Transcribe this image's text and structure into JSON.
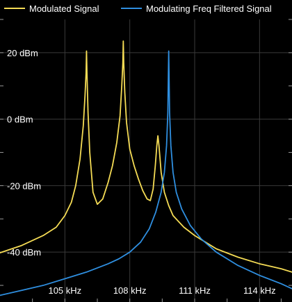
{
  "chart_data": {
    "type": "line",
    "title": "",
    "xlabel": "",
    "ylabel": "",
    "x_unit": "kHz",
    "y_unit": "dBm",
    "xlim": [
      102.0,
      115.5
    ],
    "ylim": [
      -55,
      30
    ],
    "x_ticks": [
      105,
      108,
      111,
      114
    ],
    "x_tick_labels": [
      "105 kHz",
      "108 kHz",
      "111 kHz",
      "114 kHz"
    ],
    "y_ticks": [
      20,
      0,
      -20,
      -40
    ],
    "y_tick_labels": [
      "20 dBm",
      "0 dBm",
      "-20 dBm",
      "-40 dBm"
    ],
    "x_minor_ticks": [
      103.5,
      106.5,
      109.5,
      112.5,
      115.0
    ],
    "y_minor_ticks": [
      30,
      10,
      -10,
      -30,
      -50
    ],
    "grid": true,
    "legend_position": "top",
    "background_color": "#000000",
    "grid_color": "#3a3a3a",
    "text_color": "#ffffff",
    "series": [
      {
        "name": "Modulated Signal",
        "color": "#f5dc55",
        "x": [
          102.0,
          103.0,
          104.0,
          104.6,
          105.0,
          105.3,
          105.5,
          105.7,
          105.85,
          105.93,
          105.98,
          106.0,
          106.02,
          106.07,
          106.15,
          106.3,
          106.5,
          106.75,
          107.0,
          107.2,
          107.4,
          107.55,
          107.63,
          107.68,
          107.7,
          107.72,
          107.77,
          107.85,
          108.0,
          108.2,
          108.4,
          108.6,
          108.8,
          108.95,
          109.08,
          109.18,
          109.25,
          109.3,
          109.35,
          109.45,
          109.6,
          109.8,
          110.0,
          110.5,
          111.0,
          111.5,
          112.0,
          113.0,
          114.0,
          115.0,
          115.5
        ],
        "y": [
          -40.2,
          -38.0,
          -35.0,
          -32.5,
          -29.0,
          -25.0,
          -20.0,
          -12.0,
          -2.0,
          7.0,
          14.0,
          20.5,
          14.0,
          2.0,
          -10.0,
          -22.0,
          -25.6,
          -24.0,
          -19.0,
          -14.0,
          -7.0,
          1.0,
          10.0,
          17.0,
          23.5,
          17.0,
          8.0,
          -1.0,
          -9.0,
          -14.0,
          -18.0,
          -21.5,
          -24.0,
          -24.5,
          -21.0,
          -14.0,
          -8.0,
          -5.0,
          -8.0,
          -16.0,
          -22.0,
          -26.0,
          -29.0,
          -32.5,
          -35.0,
          -37.0,
          -39.0,
          -41.5,
          -43.5,
          -45.0,
          -46.0
        ]
      },
      {
        "name": "Modulating Freq Filtered Signal",
        "color": "#2f8fe0",
        "x": [
          102.0,
          103.0,
          104.0,
          105.0,
          106.0,
          107.0,
          107.5,
          108.0,
          108.5,
          108.9,
          109.2,
          109.45,
          109.6,
          109.7,
          109.76,
          109.8,
          109.84,
          109.9,
          110.0,
          110.15,
          110.4,
          110.8,
          111.3,
          112.0,
          113.0,
          114.0,
          115.0,
          115.5
        ],
        "y": [
          -53.0,
          -51.5,
          -50.0,
          -48.0,
          -46.0,
          -43.5,
          -42.0,
          -40.0,
          -37.0,
          -33.0,
          -28.0,
          -22.0,
          -16.0,
          -8.0,
          2.0,
          20.5,
          2.0,
          -8.0,
          -16.0,
          -22.0,
          -27.0,
          -32.0,
          -36.0,
          -40.0,
          -44.0,
          -47.0,
          -49.5,
          -51.0
        ]
      }
    ]
  }
}
